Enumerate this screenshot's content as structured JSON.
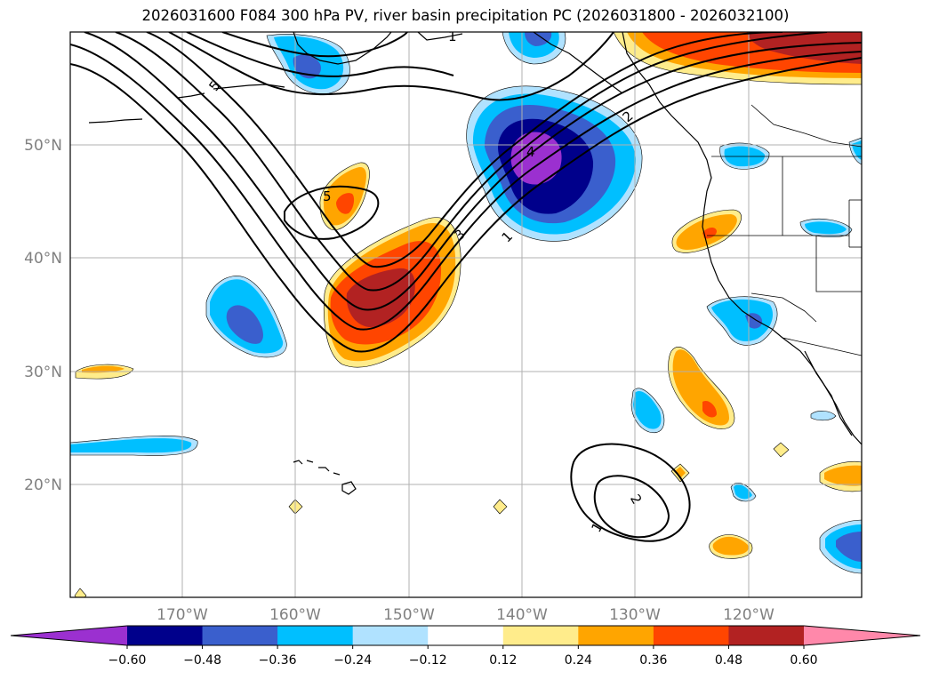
{
  "title": "2026031600 F084 300 hPa PV, river basin precipitation PC (2026031800 - 2026032100)",
  "lat_labels": [
    "50°N",
    "40°N",
    "30°N",
    "20°N"
  ],
  "lon_labels": [
    "170°W",
    "160°W",
    "150°W",
    "140°W",
    "130°W",
    "120°W"
  ],
  "colorbar": {
    "tick_labels": [
      "−0.60",
      "−0.48",
      "−0.36",
      "−0.24",
      "−0.12",
      "0.12",
      "0.24",
      "0.36",
      "0.48",
      "0.60"
    ],
    "colors": [
      "#9b30d0",
      "#00008b",
      "#3a5fcd",
      "#00bfff",
      "#b0e2ff",
      "#ffffff",
      "#ffec8b",
      "#ffa500",
      "#ff4500",
      "#b22222",
      "#ff88aa"
    ]
  },
  "pv_contour_labels": [
    "5",
    "5",
    "4",
    "3",
    "2",
    "1",
    "2",
    "1",
    "1"
  ],
  "colors": {
    "purple": "#9b30d0",
    "navy": "#00008b",
    "royal": "#3a5fcd",
    "sky": "#00bfff",
    "pale": "#b0e2ff",
    "lightyellow": "#ffec8b",
    "orange": "#ffa500",
    "redorange": "#ff4500",
    "firebrick": "#b22222"
  }
}
